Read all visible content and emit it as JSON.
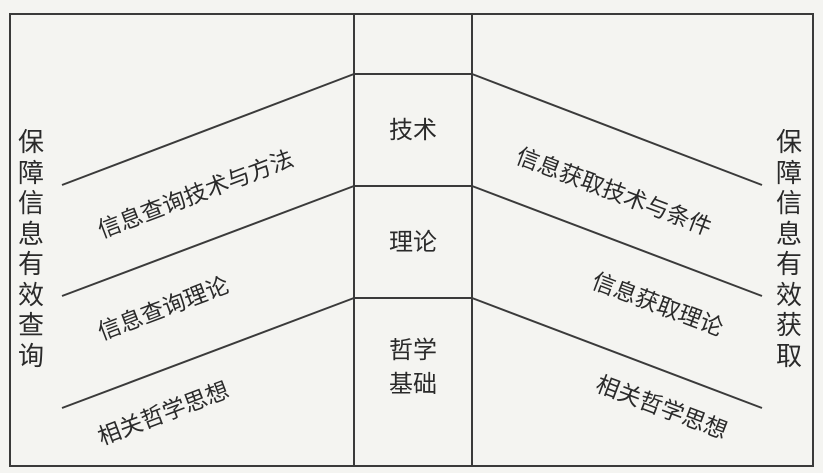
{
  "left_vertical_label": "保障信息有效查询",
  "right_vertical_label": "保障信息有效获取",
  "center_layers": [
    {
      "text": "技术"
    },
    {
      "text": "理论"
    },
    {
      "text": "哲学\n基础"
    }
  ],
  "left_items": [
    "信息查询技术与方法",
    "信息查询理论",
    "相关哲学思想"
  ],
  "right_items": [
    "信息获取技术与条件",
    "信息获取理论",
    "相关哲学思想"
  ],
  "colors": {
    "line": "#3a3a3a",
    "text": "#2a2a2a",
    "background": "#f4f4f1"
  }
}
